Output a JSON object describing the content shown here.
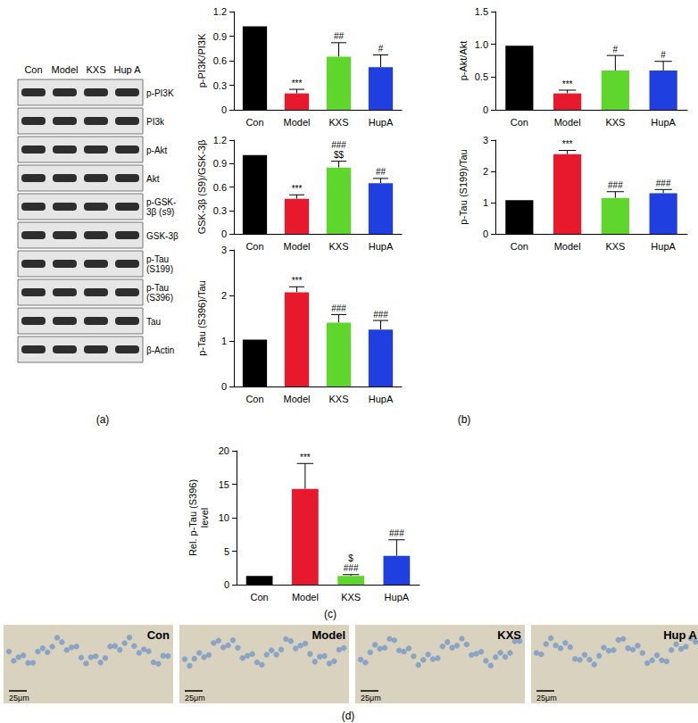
{
  "chart_data": [
    {
      "type": "bar",
      "ylabel": "p-PI3K/PI3K",
      "categories": [
        "Con",
        "Model",
        "KXS",
        "HupA"
      ],
      "values": [
        1.02,
        0.2,
        0.65,
        0.52
      ],
      "errors": [
        null,
        0.05,
        0.17,
        0.15
      ],
      "colors": [
        "#000000",
        "#e8192c",
        "#5fd62b",
        "#1f3fe0"
      ],
      "ylim": [
        0,
        1.2
      ],
      "yticks": [
        0,
        0.3,
        0.6,
        0.9,
        1.2
      ],
      "grid": false,
      "annotations": [
        {
          "category": "Model",
          "text": [
            "***"
          ]
        },
        {
          "category": "KXS",
          "text": [
            "##"
          ]
        },
        {
          "category": "HupA",
          "text": [
            "#"
          ]
        }
      ]
    },
    {
      "type": "bar",
      "ylabel": "p-Akt/Akt",
      "categories": [
        "Con",
        "Model",
        "KXS",
        "HupA"
      ],
      "values": [
        0.98,
        0.25,
        0.6,
        0.6
      ],
      "errors": [
        null,
        0.05,
        0.23,
        0.14
      ],
      "colors": [
        "#000000",
        "#e8192c",
        "#5fd62b",
        "#1f3fe0"
      ],
      "ylim": [
        0,
        1.5
      ],
      "yticks": [
        0,
        0.5,
        {
          "value": 1,
          "label": "1.0"
        },
        1.5
      ],
      "grid": false,
      "annotations": [
        {
          "category": "Model",
          "text": [
            "***"
          ]
        },
        {
          "category": "KXS",
          "text": [
            "#"
          ]
        },
        {
          "category": "HupA",
          "text": [
            "#"
          ]
        }
      ]
    },
    {
      "type": "bar",
      "ylabel": "GSK-3β (S9)/GSK-3β",
      "categories": [
        "Con",
        "Model",
        "KXS",
        "HupA"
      ],
      "values": [
        1.01,
        0.45,
        0.85,
        0.65
      ],
      "errors": [
        null,
        0.05,
        0.08,
        0.06
      ],
      "colors": [
        "#000000",
        "#e8192c",
        "#5fd62b",
        "#1f3fe0"
      ],
      "ylim": [
        0,
        1.2
      ],
      "yticks": [
        0,
        0.3,
        0.6,
        0.9,
        1.2
      ],
      "grid": false,
      "annotations": [
        {
          "category": "Model",
          "text": [
            "***"
          ]
        },
        {
          "category": "KXS",
          "text": [
            "###",
            "$$"
          ]
        },
        {
          "category": "HupA",
          "text": [
            "##"
          ]
        }
      ]
    },
    {
      "type": "bar",
      "ylabel": "p-Tau (S199)/Tau",
      "categories": [
        "Con",
        "Model",
        "KXS",
        "HupA"
      ],
      "values": [
        1.08,
        2.55,
        1.15,
        1.3
      ],
      "errors": [
        null,
        0.12,
        0.2,
        0.12
      ],
      "colors": [
        "#000000",
        "#e8192c",
        "#5fd62b",
        "#1f3fe0"
      ],
      "ylim": [
        0,
        3
      ],
      "yticks": [
        0,
        1,
        2,
        3
      ],
      "grid": false,
      "annotations": [
        {
          "category": "Model",
          "text": [
            "***"
          ]
        },
        {
          "category": "KXS",
          "text": [
            "###"
          ]
        },
        {
          "category": "HupA",
          "text": [
            "###"
          ]
        }
      ]
    },
    {
      "type": "bar",
      "ylabel": "p-Tau (S396)/Tau",
      "categories": [
        "Con",
        "Model",
        "KXS",
        "HupA"
      ],
      "values": [
        1.03,
        2.07,
        1.4,
        1.25
      ],
      "errors": [
        null,
        0.12,
        0.18,
        0.2
      ],
      "colors": [
        "#000000",
        "#e8192c",
        "#5fd62b",
        "#1f3fe0"
      ],
      "ylim": [
        0,
        3
      ],
      "yticks": [
        0,
        1,
        2,
        3
      ],
      "grid": false,
      "annotations": [
        {
          "category": "Model",
          "text": [
            "***"
          ]
        },
        {
          "category": "KXS",
          "text": [
            "###"
          ]
        },
        {
          "category": "HupA",
          "text": [
            "###"
          ]
        }
      ]
    },
    {
      "type": "bar",
      "ylabel": "Rel. p-Tau (S396)\nlevel",
      "categories": [
        "Con",
        "Model",
        "KXS",
        "HupA"
      ],
      "values": [
        1.3,
        14.3,
        1.3,
        4.3
      ],
      "errors": [
        null,
        3.8,
        0.2,
        2.4
      ],
      "colors": [
        "#000000",
        "#e8192c",
        "#5fd62b",
        "#1f3fe0"
      ],
      "ylim": [
        0,
        20
      ],
      "yticks": [
        0,
        5,
        10,
        15,
        20
      ],
      "grid": false,
      "annotations": [
        {
          "category": "Model",
          "text": [
            "***"
          ]
        },
        {
          "category": "KXS",
          "text": [
            "$",
            "###"
          ]
        },
        {
          "category": "HupA",
          "text": [
            "###"
          ]
        }
      ]
    }
  ],
  "figure": {
    "panel_labels": {
      "a": "(a)",
      "b": "(b)",
      "c": "(c)",
      "d": "(d)"
    },
    "blot": {
      "lanes": [
        "Con",
        "Model",
        "KXS",
        "Hup A"
      ],
      "bands": [
        "p-PI3K",
        "PI3k",
        "p-Akt",
        "Akt",
        "p-GSK-\n3β (s9)",
        "GSK-3β",
        "p-Tau\n(S199)",
        "p-Tau\n(S396)",
        "Tau",
        "β-Actin"
      ]
    },
    "micrographs": {
      "panels": [
        "Con",
        "Model",
        "KXS",
        "Hup A"
      ],
      "scale_bar": "25μm"
    }
  }
}
